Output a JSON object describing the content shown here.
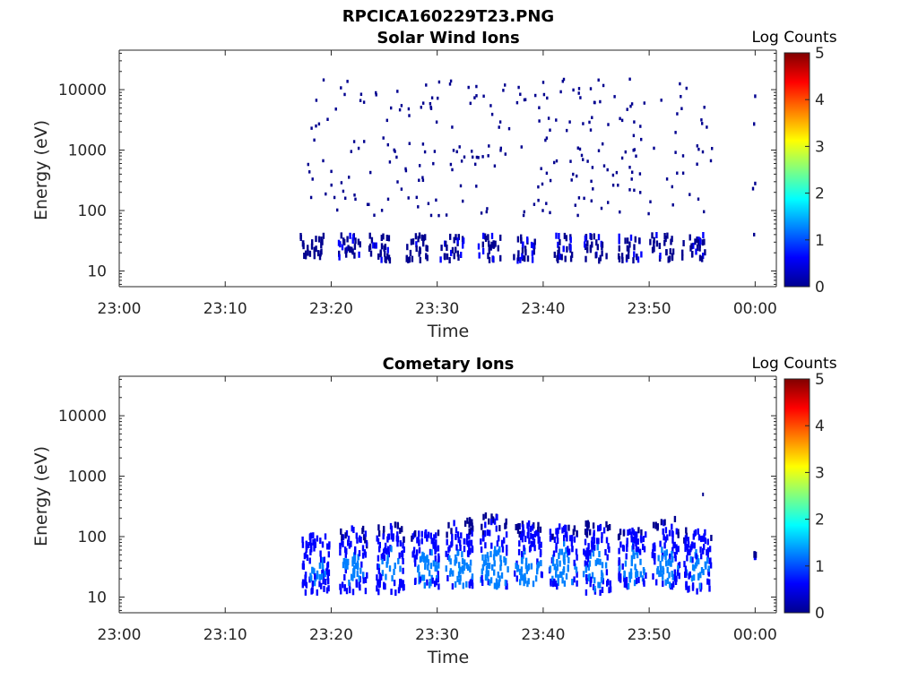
{
  "figure": {
    "title": "RPCICA160229T23.PNG"
  },
  "colormap": [
    "#00008f",
    "#0000ff",
    "#0080ff",
    "#00ffff",
    "#80ff80",
    "#ffff00",
    "#ff8000",
    "#ff0000",
    "#800000"
  ],
  "chart_data": [
    {
      "type": "heatmap",
      "title": "Solar Wind Ions",
      "xlabel": "Time",
      "ylabel": "Energy (eV)",
      "colorbar_label": "Log Counts",
      "x_ticks": [
        "23:00",
        "23:10",
        "23:20",
        "23:30",
        "23:40",
        "23:50",
        "00:00"
      ],
      "x_range_minutes": [
        0,
        62
      ],
      "y_scale": "log",
      "y_ticks": [
        "10",
        "100",
        "1000",
        "10000"
      ],
      "y_range": [
        5.5,
        45000
      ],
      "colorbar_ticks": [
        "0",
        "1",
        "2",
        "3",
        "4",
        "5"
      ],
      "colorbar_range": [
        0,
        5
      ],
      "grid": false,
      "description_note": "Sparse low-count pixels (log counts ~0-0.5) between 23:17 and 23:56, plus a few near 00:00; clusters at 15-40 eV every ~3.3 min.",
      "bursts": [
        {
          "t": 18.0,
          "e_lo": 15,
          "e_hi": 40,
          "peak": 0.3
        },
        {
          "t": 21.5,
          "e_lo": 15,
          "e_hi": 40,
          "peak": 0.4
        },
        {
          "t": 24.5,
          "e_lo": 15,
          "e_hi": 40,
          "peak": 0.4
        },
        {
          "t": 28.0,
          "e_lo": 15,
          "e_hi": 40,
          "peak": 0.4
        },
        {
          "t": 31.2,
          "e_lo": 15,
          "e_hi": 40,
          "peak": 0.4
        },
        {
          "t": 34.8,
          "e_lo": 15,
          "e_hi": 40,
          "peak": 0.4
        },
        {
          "t": 38.0,
          "e_lo": 15,
          "e_hi": 40,
          "peak": 0.5
        },
        {
          "t": 41.5,
          "e_lo": 15,
          "e_hi": 40,
          "peak": 0.5
        },
        {
          "t": 44.8,
          "e_lo": 15,
          "e_hi": 40,
          "peak": 0.4
        },
        {
          "t": 48.0,
          "e_lo": 15,
          "e_hi": 40,
          "peak": 0.4
        },
        {
          "t": 51.0,
          "e_lo": 15,
          "e_hi": 40,
          "peak": 0.4
        },
        {
          "t": 54.0,
          "e_lo": 15,
          "e_hi": 40,
          "peak": 0.4
        }
      ]
    },
    {
      "type": "heatmap",
      "title": "Cometary Ions",
      "xlabel": "Time",
      "ylabel": "Energy (eV)",
      "colorbar_label": "Log Counts",
      "x_ticks": [
        "23:00",
        "23:10",
        "23:20",
        "23:30",
        "23:40",
        "23:50",
        "00:00"
      ],
      "x_range_minutes": [
        0,
        62
      ],
      "y_scale": "log",
      "y_ticks": [
        "10",
        "100",
        "1000",
        "10000"
      ],
      "y_range": [
        5.5,
        45000
      ],
      "colorbar_ticks": [
        "0",
        "1",
        "2",
        "3",
        "4",
        "5"
      ],
      "colorbar_range": [
        0,
        5
      ],
      "grid": false,
      "description_note": "Periodic bursts (~every 3.3 min) from 23:17 to 23:56 spanning ~12-250 eV, peaking at ~1.5 log counts near 25-35 eV.",
      "bursts": [
        {
          "t": 18.5,
          "e_lo": 12,
          "e_hi": 110,
          "peak": 1.2
        },
        {
          "t": 22.0,
          "e_lo": 12,
          "e_hi": 140,
          "peak": 1.3
        },
        {
          "t": 25.5,
          "e_lo": 12,
          "e_hi": 160,
          "peak": 1.3
        },
        {
          "t": 28.8,
          "e_lo": 15,
          "e_hi": 120,
          "peak": 1.4
        },
        {
          "t": 32.0,
          "e_lo": 15,
          "e_hi": 190,
          "peak": 1.5
        },
        {
          "t": 35.3,
          "e_lo": 15,
          "e_hi": 230,
          "peak": 1.6
        },
        {
          "t": 38.5,
          "e_lo": 15,
          "e_hi": 170,
          "peak": 1.5
        },
        {
          "t": 41.8,
          "e_lo": 15,
          "e_hi": 150,
          "peak": 1.5
        },
        {
          "t": 45.0,
          "e_lo": 12,
          "e_hi": 180,
          "peak": 1.4
        },
        {
          "t": 48.3,
          "e_lo": 15,
          "e_hi": 130,
          "peak": 1.4
        },
        {
          "t": 51.5,
          "e_lo": 15,
          "e_hi": 200,
          "peak": 1.4
        },
        {
          "t": 54.5,
          "e_lo": 12,
          "e_hi": 130,
          "peak": 1.3
        },
        {
          "t": 59.8,
          "e_lo": 40,
          "e_hi": 55,
          "peak": 0.5
        }
      ]
    }
  ]
}
